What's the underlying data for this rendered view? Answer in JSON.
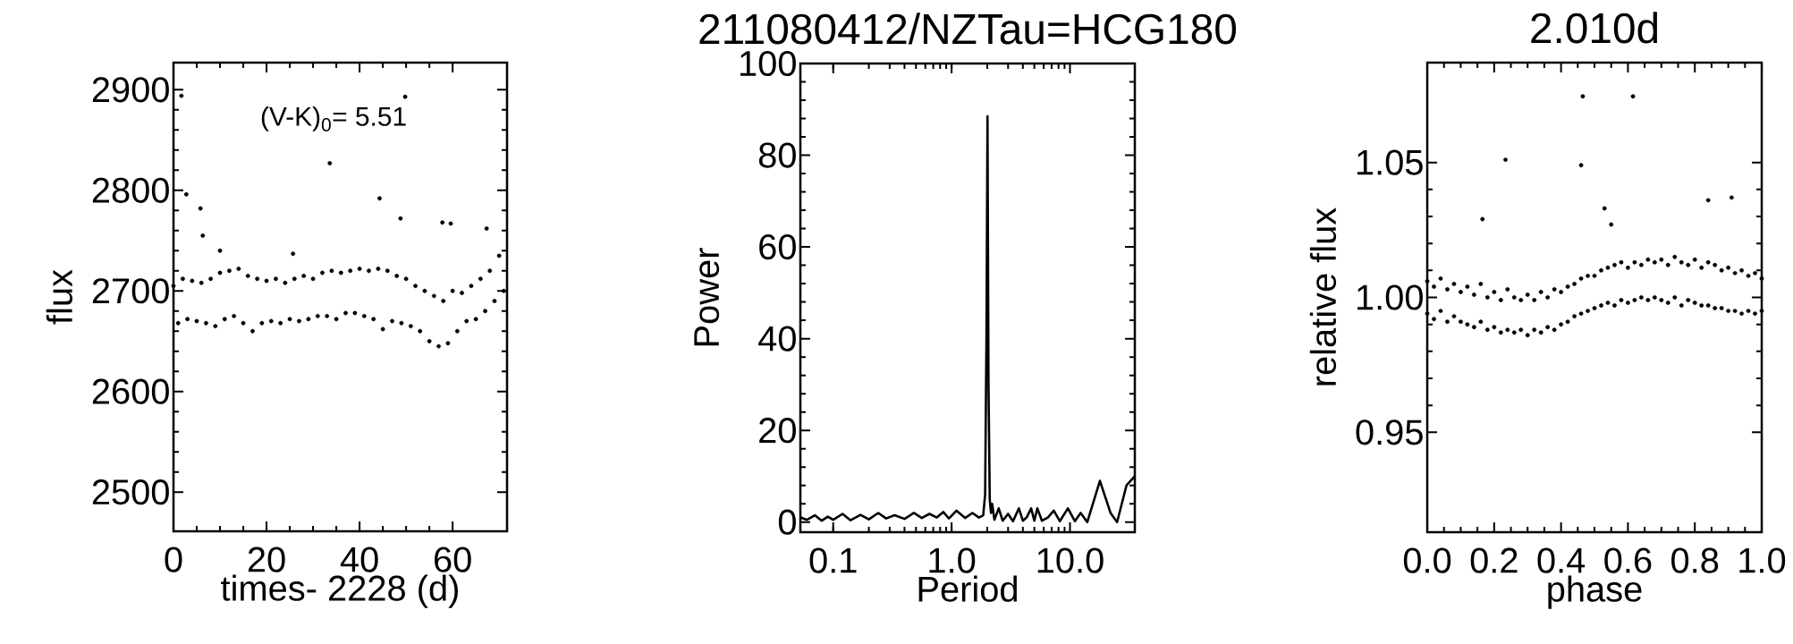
{
  "chart_data": [
    {
      "type": "scatter",
      "xlabel": "times- 2228 (d)",
      "ylabel": "flux",
      "marker": "circle",
      "color": "#000000",
      "annotations": [
        "(V-K)$_{0}$= 5.51"
      ],
      "xlim": [
        0,
        71.7
      ],
      "ylim": [
        2461,
        2927
      ],
      "xticks": [
        0,
        20,
        40,
        60
      ],
      "yticks": [
        2500,
        2600,
        2700,
        2800,
        2900
      ],
      "x": [
        0,
        1,
        2,
        3,
        4,
        5,
        6,
        7,
        8,
        9,
        10,
        11,
        12,
        13,
        14,
        15,
        16,
        17,
        18,
        19,
        20,
        21,
        22,
        23,
        24,
        25,
        26,
        27,
        28,
        29,
        30,
        31,
        32,
        33,
        34,
        35,
        36,
        37,
        38,
        39,
        40,
        41,
        42,
        43,
        44,
        45,
        46,
        47,
        48,
        49,
        50,
        51,
        52,
        53,
        54,
        55,
        56,
        57,
        58,
        59,
        60,
        61,
        62,
        63,
        64,
        65,
        66,
        67,
        68,
        69,
        70,
        71,
        1.7,
        2.75,
        5.8,
        6.3,
        10,
        25.7,
        33.6,
        44.3,
        48.8,
        49.8,
        57.8,
        59.6,
        67.3
      ],
      "values": [
        2705,
        2668,
        2712,
        2672,
        2710,
        2670,
        2708,
        2668,
        2712,
        2665,
        2718,
        2672,
        2720,
        2675,
        2722,
        2668,
        2715,
        2660,
        2712,
        2668,
        2710,
        2670,
        2712,
        2668,
        2708,
        2672,
        2712,
        2670,
        2715,
        2672,
        2712,
        2675,
        2718,
        2675,
        2720,
        2672,
        2718,
        2678,
        2720,
        2678,
        2722,
        2675,
        2720,
        2672,
        2722,
        2662,
        2720,
        2670,
        2715,
        2668,
        2712,
        2665,
        2705,
        2660,
        2700,
        2650,
        2695,
        2645,
        2690,
        2648,
        2700,
        2660,
        2698,
        2670,
        2705,
        2672,
        2712,
        2680,
        2720,
        2690,
        2735,
        2700,
        2894,
        2796,
        2782,
        2755,
        2740,
        2737,
        2827,
        2792,
        2772,
        2893,
        2768,
        2767,
        2762
      ]
    },
    {
      "type": "line",
      "title": "211080412/NZTau=HCG180",
      "xlabel": "Period",
      "ylabel": "Power",
      "log": "x",
      "color": "#000000",
      "xlim": [
        0.0528,
        35.3
      ],
      "ylim": [
        -2.2,
        100
      ],
      "xticks": [
        0.1,
        {
          "value": 1,
          "label": "1.0"
        },
        {
          "value": 10,
          "label": "10.0"
        }
      ],
      "yticks": [
        0,
        20,
        40,
        60,
        80,
        100
      ],
      "x": [
        0.053,
        0.06,
        0.07,
        0.08,
        0.09,
        0.1,
        0.12,
        0.14,
        0.17,
        0.2,
        0.24,
        0.28,
        0.33,
        0.4,
        0.48,
        0.56,
        0.65,
        0.75,
        0.85,
        0.95,
        1.1,
        1.3,
        1.5,
        1.7,
        1.85,
        1.92,
        1.97,
        2.01,
        2.05,
        2.1,
        2.15,
        2.2,
        2.3,
        2.5,
        2.7,
        3.0,
        3.3,
        3.7,
        4.0,
        4.3,
        4.7,
        5.0,
        5.3,
        5.8,
        6.5,
        7.3,
        8.2,
        9.6,
        11,
        12.3,
        14,
        17.9,
        22,
        25,
        30,
        35.3
      ],
      "values": [
        1,
        0.5,
        1.5,
        0.3,
        1.2,
        0.5,
        1.8,
        0.4,
        1.6,
        0.6,
        2,
        0.8,
        1.5,
        0.7,
        2,
        0.9,
        1.8,
        1,
        2.2,
        0.8,
        2.5,
        0.9,
        2,
        1,
        1.5,
        6,
        40,
        88.5,
        30,
        5,
        2,
        4,
        0.5,
        3,
        0.3,
        1.8,
        0.2,
        3,
        0.3,
        1,
        3,
        0.3,
        3,
        0.3,
        1,
        2.5,
        0.2,
        3,
        0.2,
        2,
        0,
        9,
        2,
        0,
        8,
        10
      ]
    },
    {
      "type": "scatter",
      "title": "2.010d",
      "xlabel": "phase",
      "ylabel": "relative flux",
      "marker": "circle",
      "color": "#000000",
      "xlim": [
        0,
        1
      ],
      "ylim": [
        0.913,
        1.087
      ],
      "xticks": [
        {
          "value": 0,
          "label": "0.0"
        },
        0.2,
        0.4,
        0.6,
        0.8,
        {
          "value": 1,
          "label": "1.0"
        }
      ],
      "yticks": [
        0.95,
        {
          "value": 1,
          "label": "1.00"
        },
        1.05
      ],
      "x": [
        0,
        0,
        0.02,
        0.02,
        0.04,
        0.04,
        0.06,
        0.06,
        0.08,
        0.08,
        0.1,
        0.1,
        0.12,
        0.12,
        0.14,
        0.14,
        0.16,
        0.16,
        0.18,
        0.18,
        0.2,
        0.2,
        0.22,
        0.22,
        0.24,
        0.24,
        0.26,
        0.26,
        0.28,
        0.28,
        0.3,
        0.3,
        0.32,
        0.32,
        0.34,
        0.34,
        0.36,
        0.36,
        0.38,
        0.38,
        0.4,
        0.4,
        0.42,
        0.42,
        0.44,
        0.44,
        0.46,
        0.46,
        0.48,
        0.48,
        0.5,
        0.5,
        0.52,
        0.52,
        0.54,
        0.54,
        0.56,
        0.56,
        0.58,
        0.58,
        0.6,
        0.6,
        0.62,
        0.62,
        0.64,
        0.64,
        0.66,
        0.66,
        0.68,
        0.68,
        0.7,
        0.7,
        0.72,
        0.72,
        0.74,
        0.74,
        0.76,
        0.76,
        0.78,
        0.78,
        0.8,
        0.8,
        0.82,
        0.82,
        0.84,
        0.84,
        0.86,
        0.86,
        0.88,
        0.88,
        0.9,
        0.9,
        0.92,
        0.92,
        0.94,
        0.94,
        0.96,
        0.96,
        0.98,
        0.98,
        1,
        1,
        0.465,
        0.615,
        0.234,
        0.46,
        0.165,
        0.84,
        0.91,
        0.53,
        0.55
      ],
      "values": [
        1.006,
        0.994,
        1.004,
        0.992,
        1.007,
        0.995,
        1.003,
        0.991,
        1.005,
        0.993,
        1.002,
        0.991,
        1.004,
        0.99,
        1.001,
        0.989,
        1.005,
        0.991,
        1.0,
        0.988,
        1.002,
        0.989,
        0.999,
        0.987,
        1.003,
        0.988,
        1.0,
        0.987,
        0.999,
        0.988,
        1.001,
        0.986,
        0.999,
        0.988,
        1.002,
        0.987,
        1.0,
        0.989,
        1.003,
        0.988,
        1.002,
        0.99,
        1.004,
        0.991,
        1.005,
        0.993,
        1.007,
        0.994,
        1.008,
        0.995,
        1.008,
        0.996,
        1.01,
        0.997,
        1.011,
        0.998,
        1.012,
        0.997,
        1.013,
        0.999,
        1.011,
        0.998,
        1.013,
        0.999,
        1.012,
        1.0,
        1.014,
        0.999,
        1.013,
        1.0,
        1.014,
        0.999,
        1.012,
        0.998,
        1.015,
        1.0,
        1.013,
        0.997,
        1.012,
        0.999,
        1.014,
        0.998,
        1.011,
        0.997,
        1.013,
        0.997,
        1.012,
        0.996,
        1.01,
        0.996,
        1.011,
        0.995,
        1.009,
        0.995,
        1.01,
        0.994,
        1.008,
        0.995,
        1.009,
        0.994,
        1.007,
        0.995,
        1.0745,
        1.0745,
        1.051,
        1.049,
        1.029,
        1.036,
        1.037,
        1.033,
        1.027
      ]
    }
  ]
}
